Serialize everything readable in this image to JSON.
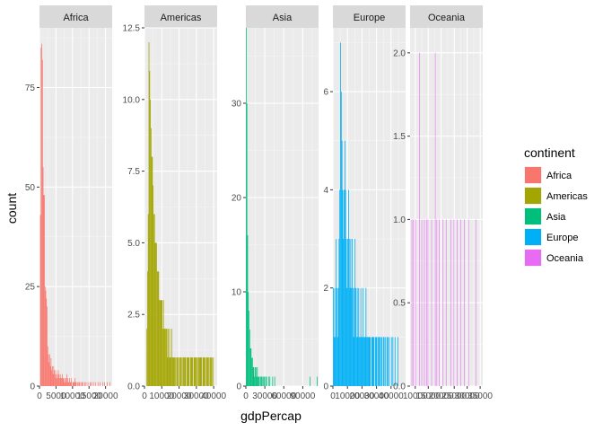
{
  "chart_data": {
    "type": "bar",
    "subtype": "faceted-histogram",
    "xlabel": "gdpPercap",
    "ylabel": "count",
    "grid": true,
    "legend": {
      "title": "continent",
      "placement": "right",
      "items": [
        {
          "label": "Africa",
          "color": "#F8766D"
        },
        {
          "label": "Americas",
          "color": "#A3A500"
        },
        {
          "label": "Asia",
          "color": "#00BF7D"
        },
        {
          "label": "Europe",
          "color": "#00B0F6"
        },
        {
          "label": "Oceania",
          "color": "#E76BF3"
        }
      ]
    },
    "panels": [
      {
        "name": "Africa",
        "color": "#F8766D",
        "xlim": [
          0,
          22000
        ],
        "ylim": [
          0,
          90
        ],
        "x_ticks": [
          {
            "value": 0,
            "label": "0"
          },
          {
            "value": 5000,
            "label": "5000"
          },
          {
            "value": 10000,
            "label": "10000"
          },
          {
            "value": 15000,
            "label": "15000"
          },
          {
            "value": 20000,
            "label": "20000"
          }
        ],
        "y_ticks": [
          {
            "value": 0,
            "label": "0"
          },
          {
            "value": 25,
            "label": "25"
          },
          {
            "value": 50,
            "label": "50"
          },
          {
            "value": 75,
            "label": "75"
          }
        ],
        "bin_width": 200,
        "bin_start": 200,
        "counts": [
          43,
          85,
          86,
          82,
          55,
          48,
          48,
          25,
          24,
          22,
          20,
          10,
          8,
          6,
          8,
          5,
          7,
          4,
          5,
          3,
          5,
          4,
          3,
          4,
          2,
          3,
          2,
          4,
          3,
          2,
          3,
          2,
          2,
          3,
          2,
          2,
          1,
          2,
          1,
          2,
          3,
          2,
          1,
          1,
          2,
          1,
          1,
          2,
          0,
          1,
          1,
          1,
          2,
          1,
          1,
          0,
          1,
          0,
          1,
          1,
          0,
          1,
          0,
          1,
          1,
          0,
          0,
          1,
          0,
          1,
          0,
          0,
          1,
          0,
          0,
          1,
          0,
          1,
          0,
          0,
          1,
          0,
          0,
          1,
          0,
          0,
          0,
          1,
          0,
          0,
          1,
          0,
          0,
          0,
          1,
          0,
          0,
          1,
          0,
          0,
          0,
          1,
          0,
          0,
          0,
          1,
          0
        ]
      },
      {
        "name": "Americas",
        "color": "#A3A500",
        "xlim": [
          0,
          42000
        ],
        "ylim": [
          0,
          12.5
        ],
        "x_ticks": [
          {
            "value": 0,
            "label": "0"
          },
          {
            "value": 10000,
            "label": "10000"
          },
          {
            "value": 20000,
            "label": "20000"
          },
          {
            "value": 30000,
            "label": "30000"
          },
          {
            "value": 40000,
            "label": "40000"
          }
        ],
        "y_ticks": [
          {
            "value": 0,
            "label": "0.0"
          },
          {
            "value": 2.5,
            "label": "2.5"
          },
          {
            "value": 5,
            "label": "5.0"
          },
          {
            "value": 7.5,
            "label": "7.5"
          },
          {
            "value": 10,
            "label": "10.0"
          },
          {
            "value": 12.5,
            "label": "12.5"
          }
        ],
        "bin_width": 400,
        "bin_start": 1200,
        "counts": [
          2,
          4,
          6,
          12,
          11,
          10,
          9,
          8,
          8,
          7,
          6,
          6,
          5,
          5,
          5,
          4,
          4,
          4,
          3,
          3,
          3,
          3,
          3,
          2,
          3,
          2,
          2,
          2,
          2,
          2,
          1,
          2,
          1,
          2,
          1,
          1,
          2,
          1,
          1,
          1,
          1,
          1,
          0,
          1,
          1,
          1,
          0,
          1,
          1,
          1,
          1,
          0,
          1,
          1,
          1,
          1,
          1,
          0,
          1,
          1,
          1,
          1,
          0,
          1,
          1,
          1,
          1,
          0,
          1,
          1,
          1,
          1,
          1,
          0,
          1,
          1,
          1,
          1,
          1,
          1,
          0,
          1,
          1,
          1,
          1,
          0,
          1,
          1,
          1,
          1,
          0,
          1,
          1,
          1,
          1,
          0,
          1
        ]
      },
      {
        "name": "Asia",
        "color": "#00BF7D",
        "xlim": [
          0,
          115000
        ],
        "ylim": [
          0,
          38
        ],
        "x_ticks": [
          {
            "value": 0,
            "label": "0"
          },
          {
            "value": 30000,
            "label": "30000"
          },
          {
            "value": 60000,
            "label": "60000"
          },
          {
            "value": 90000,
            "label": "90000"
          }
        ],
        "y_ticks": [
          {
            "value": 0,
            "label": "0"
          },
          {
            "value": 10,
            "label": "10"
          },
          {
            "value": 20,
            "label": "20"
          },
          {
            "value": 30,
            "label": "30"
          }
        ],
        "bin_width": 1100,
        "bin_start": 0,
        "counts": [
          38,
          30,
          16,
          10,
          8,
          6,
          4,
          4,
          3,
          3,
          2,
          2,
          1,
          2,
          2,
          1,
          2,
          1,
          1,
          1,
          0,
          1,
          1,
          1,
          0,
          1,
          1,
          0,
          1,
          1,
          0,
          0,
          1,
          0,
          1,
          0,
          0,
          0,
          1,
          0,
          0,
          1,
          0,
          0,
          0,
          0,
          0,
          0,
          0,
          0,
          0,
          0,
          0,
          0,
          0,
          0,
          0,
          0,
          0,
          0,
          0,
          0,
          0,
          0,
          0,
          0,
          0,
          0,
          0,
          0,
          0,
          0,
          0,
          0,
          0,
          0,
          0,
          0,
          0,
          0,
          0,
          0,
          0,
          0,
          0,
          0,
          0,
          0,
          0,
          0,
          0,
          0,
          1,
          0,
          0,
          0,
          0,
          0,
          0,
          0,
          0,
          0,
          1
        ]
      },
      {
        "name": "Europe",
        "color": "#00B0F6",
        "xlim": [
          0,
          50000
        ],
        "ylim": [
          0,
          7.3
        ],
        "x_ticks": [
          {
            "value": 0,
            "label": "0"
          },
          {
            "value": 10000,
            "label": "10000"
          },
          {
            "value": 20000,
            "label": "20000"
          },
          {
            "value": 30000,
            "label": "30000"
          },
          {
            "value": 40000,
            "label": "40000"
          }
        ],
        "y_ticks": [
          {
            "value": 0,
            "label": "0"
          },
          {
            "value": 2,
            "label": "2"
          },
          {
            "value": 4,
            "label": "4"
          },
          {
            "value": 6,
            "label": "6"
          }
        ],
        "bin_width": 500,
        "bin_start": 0,
        "counts": [
          2,
          1,
          2,
          1,
          3,
          2,
          1,
          2,
          3,
          4,
          7,
          6,
          5,
          4,
          3,
          4,
          5,
          4,
          3,
          2,
          3,
          4,
          3,
          2,
          3,
          2,
          3,
          2,
          1,
          2,
          3,
          2,
          1,
          2,
          1,
          2,
          1,
          1,
          2,
          1,
          1,
          2,
          1,
          1,
          1,
          2,
          1,
          1,
          1,
          1,
          1,
          1,
          0,
          1,
          1,
          1,
          1,
          0,
          1,
          1,
          1,
          0,
          1,
          1,
          1,
          0,
          1,
          1,
          0,
          1,
          1,
          0,
          1,
          0,
          1,
          1,
          0,
          1,
          0,
          0,
          1,
          0,
          1,
          0,
          0,
          1,
          0,
          0,
          0,
          1
        ]
      },
      {
        "name": "Oceania",
        "color": "#E76BF3",
        "xlim": [
          8000,
          36000
        ],
        "ylim": [
          0,
          2.15
        ],
        "x_ticks": [
          {
            "value": 10000,
            "label": "10000"
          },
          {
            "value": 15000,
            "label": "15000"
          },
          {
            "value": 20000,
            "label": "20000"
          },
          {
            "value": 25000,
            "label": "25000"
          },
          {
            "value": 30000,
            "label": "30000"
          },
          {
            "value": 35000,
            "label": "35000"
          }
        ],
        "y_ticks": [
          {
            "value": 0,
            "label": "0.0"
          },
          {
            "value": 0.5,
            "label": "0.5"
          },
          {
            "value": 1,
            "label": "1.0"
          },
          {
            "value": 1.5,
            "label": "1.5"
          },
          {
            "value": 2,
            "label": "2.0"
          }
        ],
        "bin_width": 200,
        "bin_start": 8600,
        "counts": [
          1,
          0,
          0,
          1,
          0,
          0,
          0,
          1,
          0,
          0,
          0,
          0,
          0,
          0,
          0,
          2,
          0,
          0,
          0,
          1,
          0,
          0,
          0,
          0,
          1,
          0,
          0,
          0,
          1,
          0,
          0,
          1,
          0,
          0,
          0,
          0,
          0,
          0,
          1,
          0,
          0,
          0,
          0,
          0,
          0,
          2,
          0,
          0,
          1,
          0,
          0,
          0,
          0,
          1,
          0,
          0,
          0,
          0,
          0,
          0,
          1,
          0,
          0,
          0,
          0,
          0,
          1,
          0,
          0,
          0,
          0,
          0,
          0,
          0,
          0,
          1,
          0,
          0,
          0,
          0,
          0,
          1,
          0,
          0,
          0,
          0,
          0,
          1,
          0,
          0,
          0,
          0,
          0,
          0,
          1,
          0,
          0,
          0,
          0,
          0,
          0,
          1,
          0,
          0,
          0,
          0,
          0,
          0,
          0,
          1,
          0,
          0,
          0,
          0,
          0,
          0,
          0,
          0,
          0,
          0,
          0,
          0,
          0,
          1
        ]
      }
    ]
  }
}
